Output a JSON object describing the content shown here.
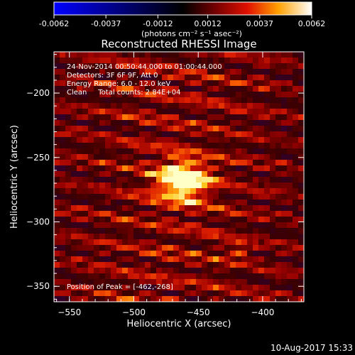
{
  "colorbar": {
    "tick_labels": [
      "-0.0062",
      "-0.0037",
      "-0.0012",
      "0.0012",
      "0.0037",
      "0.0062"
    ],
    "unit_label": "(photons cm⁻² s⁻¹ asec⁻²)",
    "range": [
      -0.0062,
      0.0062
    ],
    "colors": [
      "#0000ff",
      "#000000",
      "#5a0000",
      "#b40000",
      "#ff3000",
      "#ffa000",
      "#ffff60",
      "#ffffff"
    ]
  },
  "chart_data": {
    "type": "heatmap",
    "title": "Reconstructed RHESSI Image",
    "xlabel": "Heliocentric X (arcsec)",
    "ylabel": "Heliocentric Y (arcsec)",
    "xlim": [
      -562,
      -368
    ],
    "ylim": [
      -362,
      -168
    ],
    "xticks": [
      -550,
      -500,
      -450,
      -400
    ],
    "yticks": [
      -200,
      -250,
      -300,
      -350
    ],
    "xtick_labels": [
      "−550",
      "−500",
      "−450",
      "−400"
    ],
    "ytick_labels": [
      "−200",
      "−250",
      "−300",
      "−350"
    ],
    "peak_position": [
      -462,
      -268
    ],
    "annotations": {
      "time_range": "24-Nov-2014 00:50:44.000 to 01:00:44.000",
      "detectors": "Detectors: 3F 6F 9F, Att 0",
      "energy_range": "Energy Range: 6.0 - 12.0 keV",
      "clean_counts": "Clean     Total counts: 2.84E+04",
      "peak_text": "Position of Peak = [-462,-268]"
    }
  },
  "footer": {
    "timestamp": "10-Aug-2017 15:33"
  }
}
